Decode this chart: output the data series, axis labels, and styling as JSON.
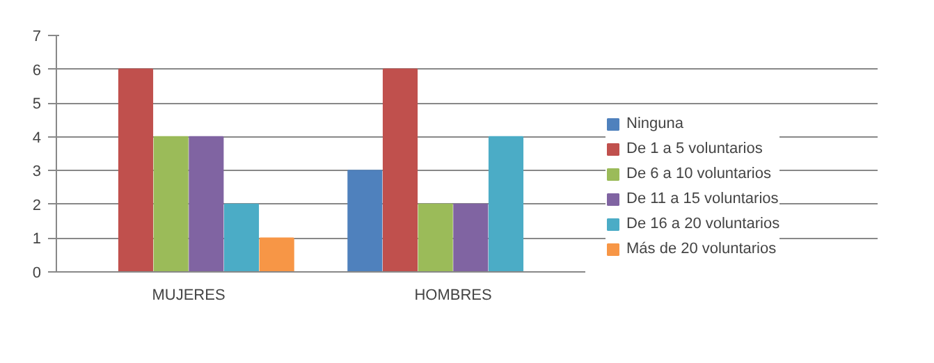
{
  "chart_data": {
    "type": "bar",
    "categories": [
      "MUJERES",
      "HOMBRES"
    ],
    "series": [
      {
        "name": "Ninguna",
        "color": "#4f81bd",
        "values": [
          0,
          3
        ]
      },
      {
        "name": "De 1 a 5 voluntarios",
        "color": "#c0504d",
        "values": [
          6,
          6
        ]
      },
      {
        "name": "De 6 a 10 voluntarios",
        "color": "#9bbb59",
        "values": [
          4,
          2
        ]
      },
      {
        "name": "De 11 a 15 voluntarios",
        "color": "#8064a2",
        "values": [
          4,
          2
        ]
      },
      {
        "name": "De 16 a 20 voluntarios",
        "color": "#4bacc6",
        "values": [
          2,
          4
        ]
      },
      {
        "name": "Más de 20 voluntarios",
        "color": "#f79646",
        "values": [
          1,
          0
        ]
      }
    ],
    "ylim": [
      0,
      7
    ],
    "yticks": [
      0,
      1,
      2,
      3,
      4,
      5,
      6,
      7
    ],
    "grid": "y",
    "legend": "right"
  }
}
